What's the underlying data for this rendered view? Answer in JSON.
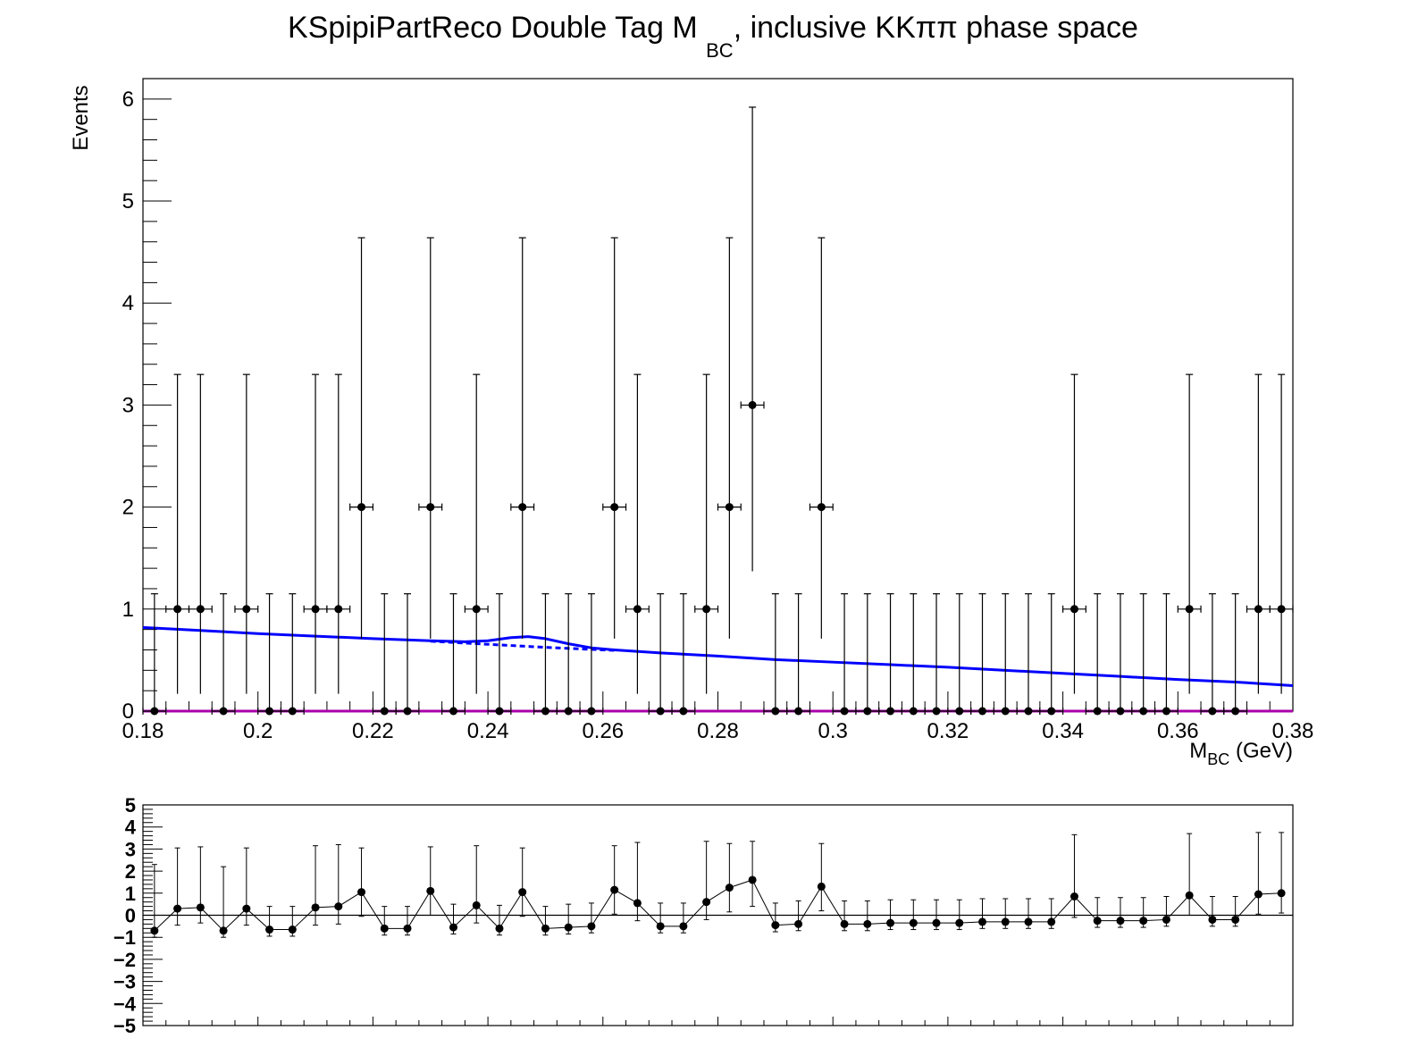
{
  "chart_data": [
    {
      "type": "scatter",
      "title_parts": [
        "KSpipiPartReco Double Tag M ",
        "BC",
        ", inclusive KKππ phase space"
      ],
      "xlabel_parts": [
        "M",
        "BC",
        " (GeV)"
      ],
      "ylabel": "Events",
      "xlim": [
        0.18,
        0.38
      ],
      "ylim": [
        0,
        6.2
      ],
      "xticks": [
        "0.18",
        "0.2",
        "0.22",
        "0.24",
        "0.26",
        "0.28",
        "0.3",
        "0.32",
        "0.34",
        "0.36",
        "0.38"
      ],
      "xtick_values": [
        0.18,
        0.2,
        0.22,
        0.24,
        0.26,
        0.28,
        0.3,
        0.32,
        0.34,
        0.36,
        0.38
      ],
      "yticks": [
        "0",
        "1",
        "2",
        "3",
        "4",
        "5",
        "6"
      ],
      "ytick_values": [
        0,
        1,
        2,
        3,
        4,
        5,
        6
      ],
      "grid": false,
      "colors": {
        "data": "#000000",
        "fit": "#0000ff",
        "component": "#aa00aa"
      },
      "series": [
        {
          "kind": "data",
          "x": [
            0.182,
            0.186,
            0.19,
            0.194,
            0.198,
            0.202,
            0.206,
            0.21,
            0.214,
            0.218,
            0.222,
            0.226,
            0.23,
            0.234,
            0.238,
            0.242,
            0.246,
            0.25,
            0.254,
            0.258,
            0.262,
            0.266,
            0.27,
            0.274,
            0.278,
            0.282,
            0.286,
            0.29,
            0.294,
            0.298,
            0.302,
            0.306,
            0.31,
            0.314,
            0.318,
            0.322,
            0.326,
            0.33,
            0.334,
            0.338,
            0.342,
            0.346,
            0.35,
            0.354,
            0.358,
            0.362,
            0.366,
            0.37,
            0.374,
            0.378
          ],
          "y": [
            0,
            1,
            1,
            0,
            1,
            0,
            0,
            1,
            1,
            2,
            0,
            0,
            2,
            0,
            1,
            0,
            2,
            0,
            0,
            0,
            2,
            1,
            0,
            0,
            1,
            2,
            3,
            0,
            0,
            2,
            0,
            0,
            0,
            0,
            0,
            0,
            0,
            0,
            0,
            0,
            1,
            0,
            0,
            0,
            0,
            1,
            0,
            0,
            1,
            1
          ],
          "x_halfwidth": 0.002
        },
        {
          "kind": "fit-total",
          "x": [
            0.18,
            0.19,
            0.2,
            0.21,
            0.22,
            0.23,
            0.236,
            0.24,
            0.244,
            0.247,
            0.25,
            0.254,
            0.258,
            0.262,
            0.27,
            0.28,
            0.29,
            0.3,
            0.31,
            0.32,
            0.33,
            0.34,
            0.35,
            0.36,
            0.37,
            0.38
          ],
          "y": [
            0.82,
            0.79,
            0.76,
            0.735,
            0.71,
            0.69,
            0.68,
            0.69,
            0.72,
            0.73,
            0.71,
            0.66,
            0.62,
            0.6,
            0.57,
            0.54,
            0.505,
            0.48,
            0.455,
            0.43,
            0.4,
            0.37,
            0.34,
            0.31,
            0.285,
            0.25
          ]
        },
        {
          "kind": "fit-background",
          "x": [
            0.23,
            0.24,
            0.25,
            0.26,
            0.262
          ],
          "y": [
            0.685,
            0.655,
            0.625,
            0.6,
            0.595
          ]
        },
        {
          "kind": "fit-component",
          "x": [
            0.18,
            0.38
          ],
          "y": [
            0.0,
            0.0
          ]
        }
      ]
    },
    {
      "type": "scatter",
      "role": "pull",
      "xlim": [
        0.18,
        0.38
      ],
      "ylim": [
        -5,
        5
      ],
      "yticks": [
        "5",
        "4",
        "3",
        "2",
        "1",
        "0",
        "−1",
        "−2",
        "−3",
        "−4",
        "−5"
      ],
      "ytick_values": [
        5,
        4,
        3,
        2,
        1,
        0,
        -1,
        -2,
        -3,
        -4,
        -5
      ],
      "x": [
        0.182,
        0.186,
        0.19,
        0.194,
        0.198,
        0.202,
        0.206,
        0.21,
        0.214,
        0.218,
        0.222,
        0.226,
        0.23,
        0.234,
        0.238,
        0.242,
        0.246,
        0.25,
        0.254,
        0.258,
        0.262,
        0.266,
        0.27,
        0.274,
        0.278,
        0.282,
        0.286,
        0.29,
        0.294,
        0.298,
        0.302,
        0.306,
        0.31,
        0.314,
        0.318,
        0.322,
        0.326,
        0.33,
        0.334,
        0.338,
        0.342,
        0.346,
        0.35,
        0.354,
        0.358,
        0.362,
        0.366,
        0.37,
        0.374,
        0.378
      ],
      "y": [
        -0.7,
        0.3,
        0.35,
        -0.7,
        0.3,
        -0.65,
        -0.65,
        0.35,
        0.4,
        1.05,
        -0.6,
        -0.6,
        1.1,
        -0.55,
        0.45,
        -0.6,
        1.05,
        -0.6,
        -0.55,
        -0.5,
        1.15,
        0.55,
        -0.5,
        -0.5,
        0.6,
        1.25,
        1.6,
        -0.45,
        -0.4,
        1.3,
        -0.4,
        -0.4,
        -0.35,
        -0.35,
        -0.35,
        -0.35,
        -0.3,
        -0.3,
        -0.3,
        -0.3,
        0.85,
        -0.25,
        -0.25,
        -0.25,
        -0.2,
        0.9,
        -0.2,
        -0.2,
        0.95,
        1.0
      ],
      "err_up": [
        3.0,
        2.75,
        2.75,
        2.9,
        2.75,
        1.05,
        1.05,
        2.8,
        2.8,
        2.0,
        1.0,
        1.0,
        2.0,
        1.05,
        2.7,
        1.05,
        2.0,
        1.0,
        1.05,
        1.05,
        2.0,
        2.75,
        1.05,
        1.05,
        2.75,
        2.0,
        1.75,
        1.0,
        1.05,
        1.95,
        1.05,
        1.05,
        1.05,
        1.05,
        1.05,
        1.05,
        1.05,
        1.05,
        1.05,
        1.05,
        2.8,
        1.05,
        1.05,
        1.05,
        1.05,
        2.8,
        1.05,
        1.05,
        2.8,
        2.75
      ],
      "err_down": [
        0.3,
        0.75,
        0.7,
        0.3,
        0.75,
        0.3,
        0.3,
        0.8,
        0.8,
        1.1,
        0.3,
        0.3,
        1.1,
        0.3,
        0.8,
        0.3,
        1.1,
        0.3,
        0.3,
        0.3,
        1.1,
        0.8,
        0.3,
        0.3,
        0.8,
        1.1,
        1.2,
        0.3,
        0.3,
        1.1,
        0.3,
        0.3,
        0.3,
        0.3,
        0.3,
        0.3,
        0.3,
        0.3,
        0.3,
        0.3,
        0.95,
        0.3,
        0.3,
        0.3,
        0.3,
        0.9,
        0.3,
        0.3,
        0.9,
        0.9
      ]
    }
  ]
}
